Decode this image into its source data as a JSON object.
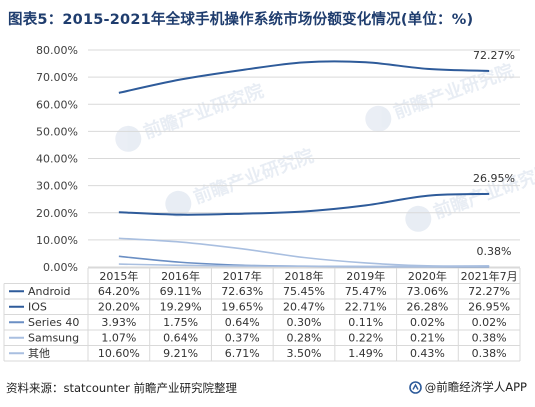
{
  "title": "图表5：2015-2021年全球手机操作系统市场份额变化情况(单位：%)",
  "source": "资料来源：statcounter 前瞻产业研究院整理",
  "brand": "@前瞻经济学人APP",
  "watermark": "前瞻产业研究院",
  "colors": {
    "Android": "#2e5b9a",
    "IOS": "#2e5b9a",
    "Series 40": "#6b8fc4",
    "Samsung": "#a9bfe0",
    "其他": "#a9bfe0",
    "grid": "#d9d9d9",
    "title": "#1f3d6e"
  },
  "chart_data": {
    "type": "line",
    "categories": [
      "2015年",
      "2016年",
      "2017年",
      "2018年",
      "2019年",
      "2020年",
      "2021年7月"
    ],
    "ylim": [
      0,
      80
    ],
    "yticks": [
      "0.00%",
      "10.00%",
      "20.00%",
      "30.00%",
      "40.00%",
      "50.00%",
      "60.00%",
      "70.00%",
      "80.00%"
    ],
    "grid": true,
    "legend": "table-below",
    "series": [
      {
        "name": "Android",
        "values": [
          64.2,
          69.11,
          72.63,
          75.45,
          75.47,
          73.06,
          72.27
        ],
        "labels": [
          "64.20%",
          "69.11%",
          "72.63%",
          "75.45%",
          "75.47%",
          "73.06%",
          "72.27%"
        ]
      },
      {
        "name": "IOS",
        "values": [
          20.2,
          19.29,
          19.65,
          20.47,
          22.71,
          26.28,
          26.95
        ],
        "labels": [
          "20.20%",
          "19.29%",
          "19.65%",
          "20.47%",
          "22.71%",
          "26.28%",
          "26.95%"
        ]
      },
      {
        "name": "Series 40",
        "values": [
          3.93,
          1.75,
          0.64,
          0.3,
          0.11,
          0.02,
          0.02
        ],
        "labels": [
          "3.93%",
          "1.75%",
          "0.64%",
          "0.30%",
          "0.11%",
          "0.02%",
          "0.02%"
        ]
      },
      {
        "name": "Samsung",
        "values": [
          1.07,
          0.64,
          0.37,
          0.28,
          0.22,
          0.21,
          0.38
        ],
        "labels": [
          "1.07%",
          "0.64%",
          "0.37%",
          "0.28%",
          "0.22%",
          "0.21%",
          "0.38%"
        ]
      },
      {
        "name": "其他",
        "values": [
          10.6,
          9.21,
          6.71,
          3.5,
          1.49,
          0.43,
          0.38
        ],
        "labels": [
          "10.60%",
          "9.21%",
          "6.71%",
          "3.50%",
          "1.49%",
          "0.43%",
          "0.38%"
        ]
      }
    ],
    "annotations": [
      "72.27%",
      "26.95%",
      "0.38%"
    ]
  }
}
